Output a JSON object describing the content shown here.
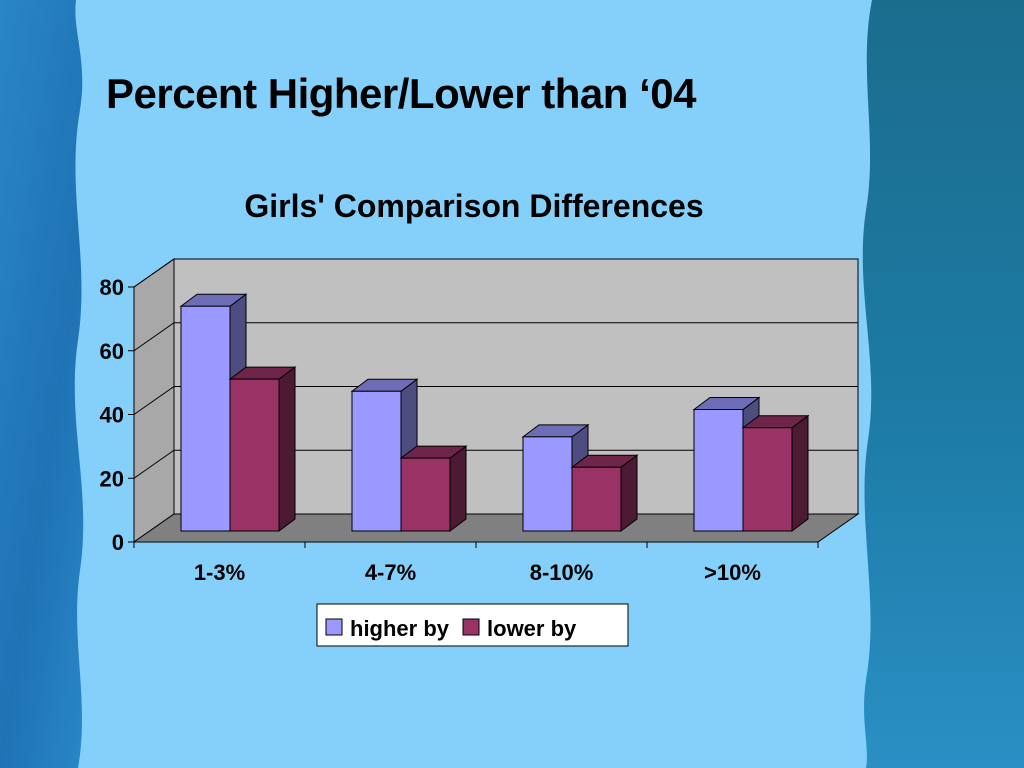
{
  "slide": {
    "title": "Percent Higher/Lower than ‘04"
  },
  "colors": {
    "panel_background": "#84d0fa",
    "background_blue": "#1d6fae",
    "plot_wall": "#c0c0c0",
    "plot_floor": "#808080",
    "higher_by": "#9999ff",
    "lower_by": "#993366"
  },
  "chart_data": {
    "type": "bar",
    "title": "Girls' Comparison Differences",
    "categories": [
      "1-3%",
      "4-7%",
      "8-10%",
      ">10%"
    ],
    "series": [
      {
        "name": "higher by",
        "values": [
          74,
          46,
          31,
          40
        ],
        "color": "#9999ff"
      },
      {
        "name": "lower by",
        "values": [
          50,
          24,
          21,
          34
        ],
        "color": "#993366"
      }
    ],
    "xlabel": "",
    "ylabel": "",
    "ylim": [
      0,
      80
    ],
    "yticks": [
      0,
      20,
      40,
      60,
      80
    ],
    "grid": true,
    "legend": "bottom-center",
    "style": "3d-clustered-column"
  }
}
